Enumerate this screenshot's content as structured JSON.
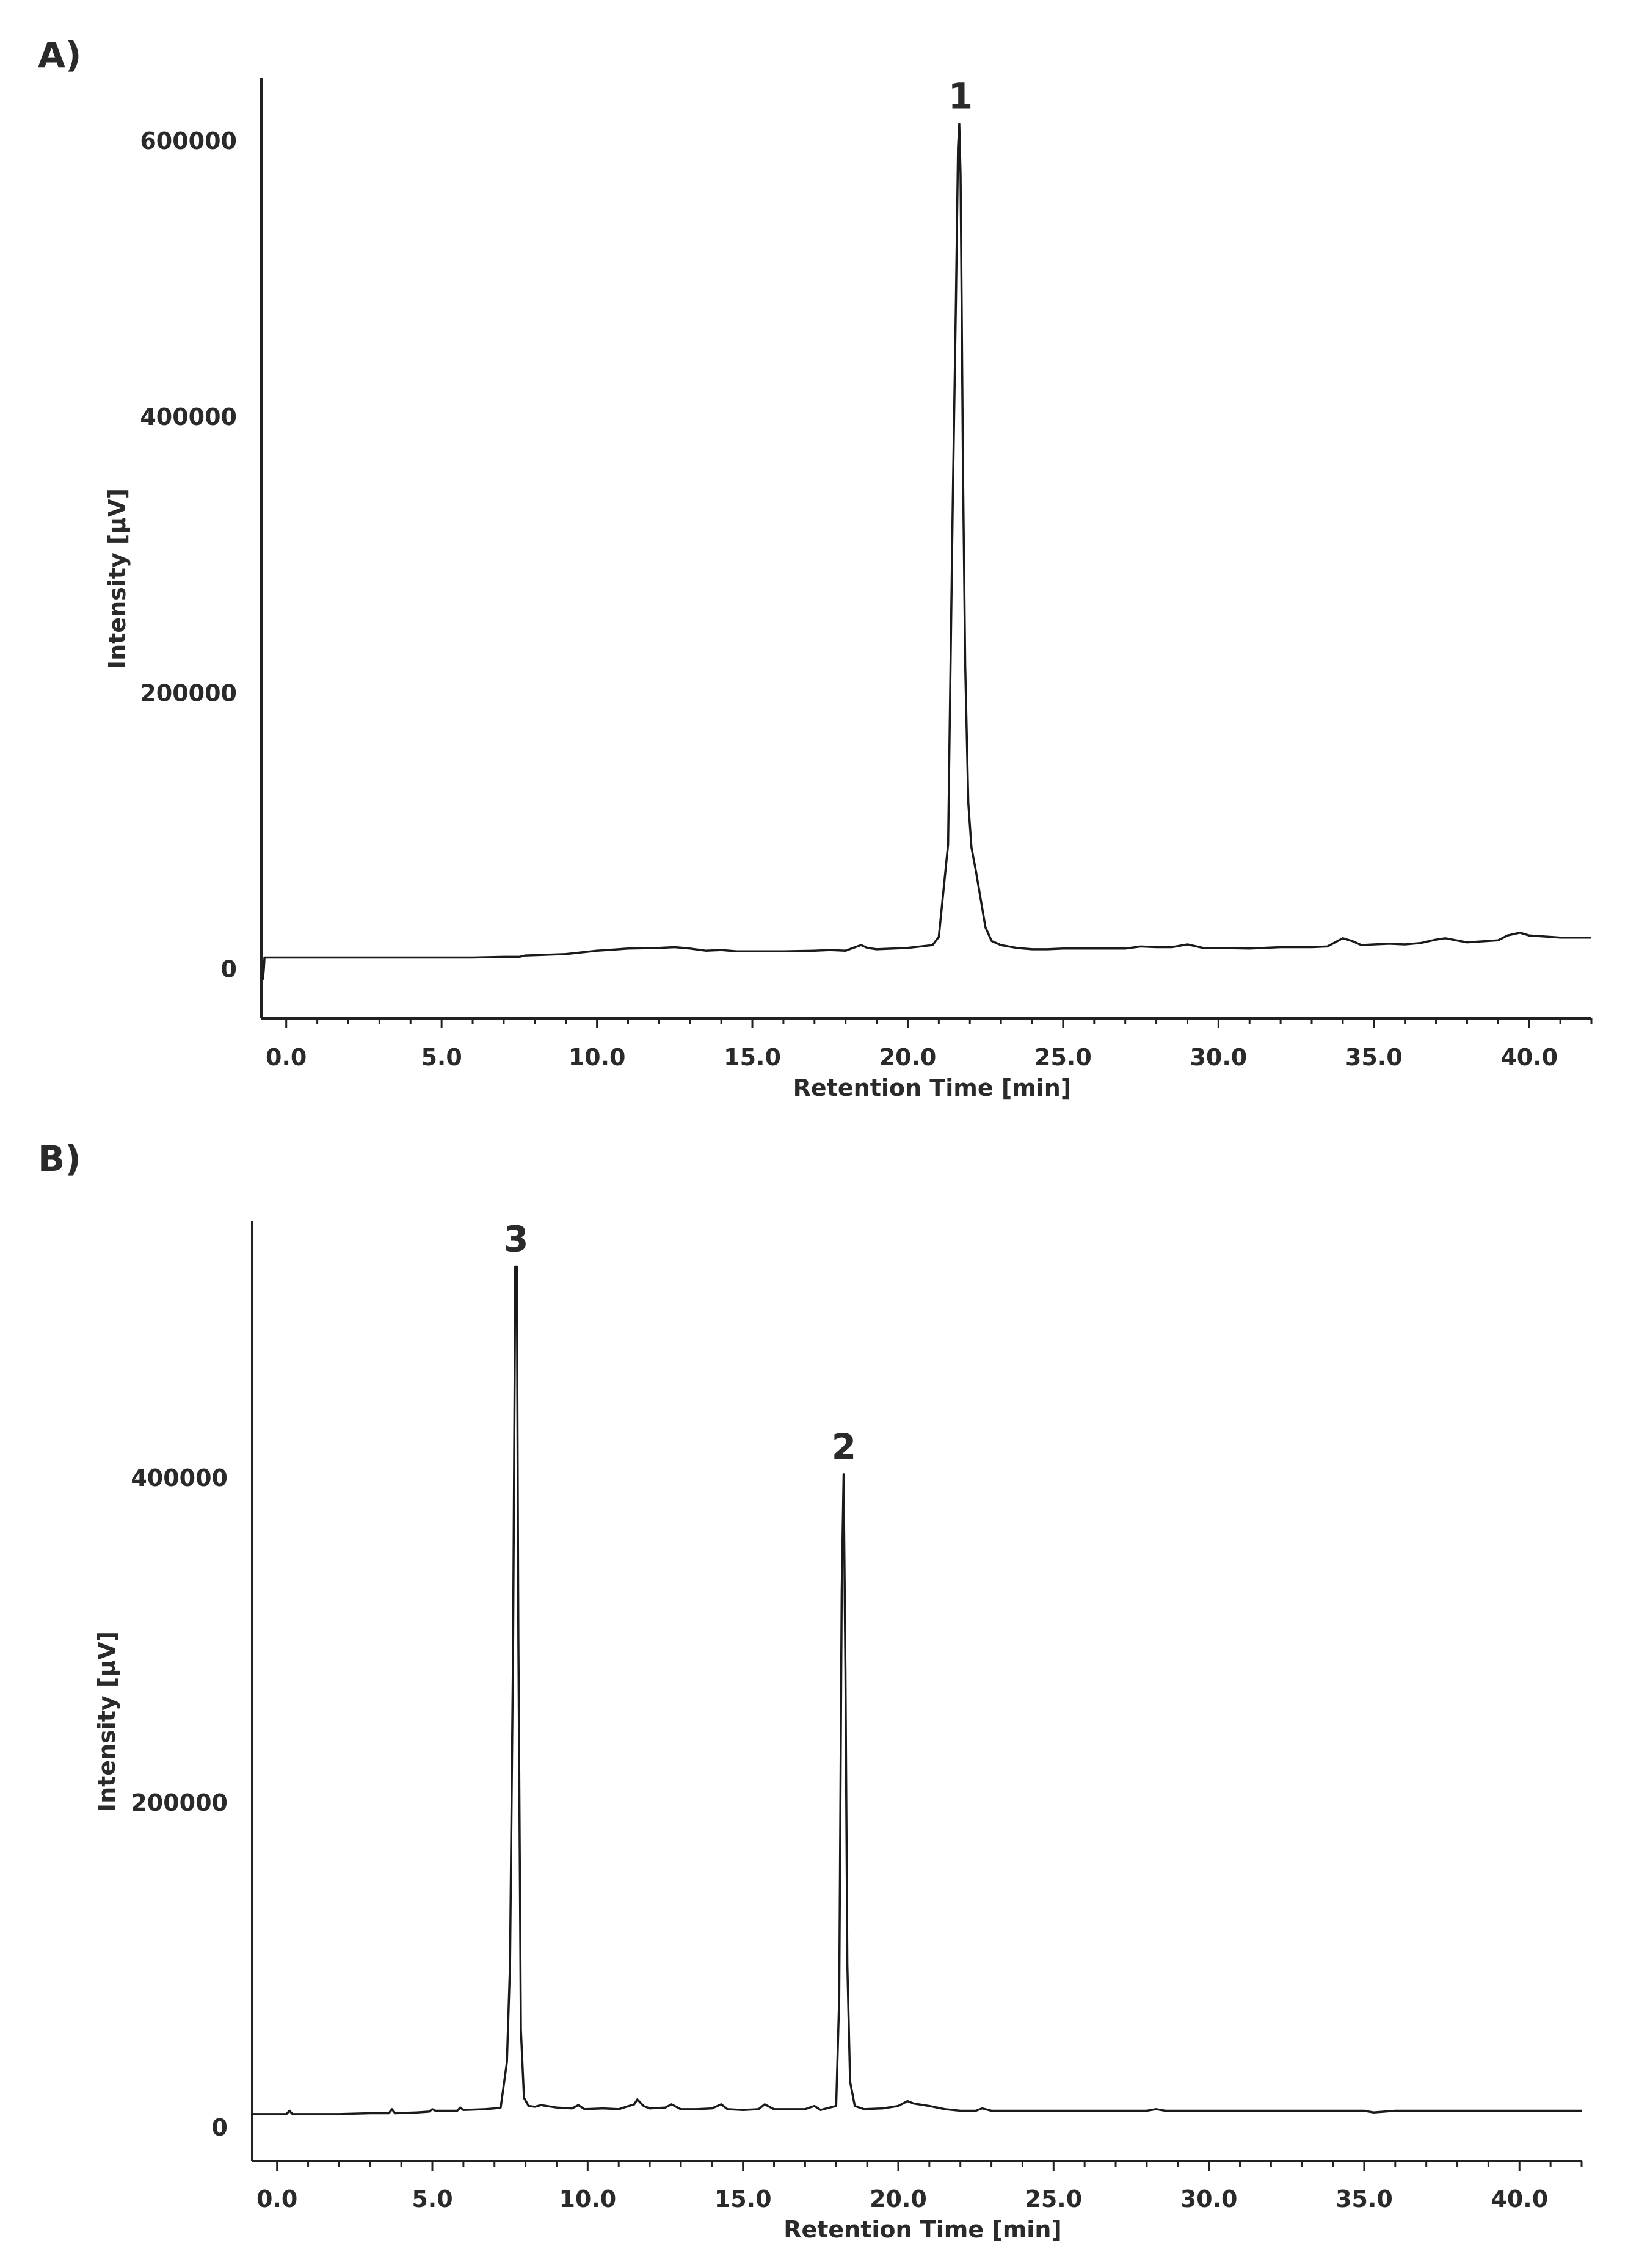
{
  "panels": [
    {
      "letter": "A)",
      "chart_data": {
        "type": "line",
        "title": "",
        "xlabel": "Retention Time [min]",
        "ylabel": "Intensity [µV]",
        "xlim": [
          -0.8,
          42.0
        ],
        "ylim": [
          -36000,
          645000
        ],
        "x_ticks": [
          "0.0",
          "5.0",
          "10.0",
          "15.0",
          "20.0",
          "25.0",
          "30.0",
          "35.0",
          "40.0"
        ],
        "y_ticks": [
          "0",
          "200000",
          "400000",
          "600000"
        ],
        "grid": false,
        "legend": "none",
        "peak_labels": [
          {
            "label": "1",
            "x": 21.7,
            "y": 612000
          }
        ],
        "series": [
          {
            "x": [
              -0.75,
              -0.72,
              -0.7,
              -0.65,
              0.0,
              2.0,
              4.0,
              6.0,
              7.0,
              7.5,
              7.7,
              9.0,
              10.0,
              11.0,
              12.0,
              12.5,
              13.0,
              13.5,
              14.0,
              14.5,
              15.0,
              16.0,
              17.0,
              17.5,
              18.0,
              18.5,
              18.7,
              19.0,
              20.0,
              20.8,
              21.0,
              21.3,
              21.45,
              21.55,
              21.62,
              21.66,
              21.7,
              21.74,
              21.78,
              21.85,
              21.95,
              22.05,
              22.2,
              22.35,
              22.5,
              22.7,
              23.0,
              23.5,
              24.0,
              24.5,
              25.0,
              26.0,
              27.0,
              27.5,
              28.0,
              28.5,
              29.0,
              29.5,
              30.0,
              31.0,
              32.0,
              33.0,
              33.5,
              34.0,
              34.3,
              34.6,
              35.0,
              35.5,
              36.0,
              36.5,
              37.0,
              37.3,
              38.0,
              39.0,
              39.3,
              39.7,
              40.0,
              41.0,
              42.0
            ],
            "y": [
              -8000,
              0,
              8000,
              8000,
              8000,
              8000,
              8000,
              8000,
              8500,
              8500,
              9500,
              10500,
              13000,
              14500,
              15000,
              15500,
              14500,
              13000,
              13500,
              12500,
              12500,
              12500,
              13000,
              13500,
              13000,
              17000,
              15000,
              14000,
              15000,
              17000,
              23000,
              90000,
              340000,
              480000,
              595000,
              612000,
              575000,
              470000,
              360000,
              220000,
              120000,
              88000,
              70000,
              50000,
              30000,
              20000,
              17000,
              15000,
              14000,
              14000,
              14500,
              14500,
              14500,
              16000,
              15500,
              15500,
              17500,
              15000,
              15000,
              14500,
              15500,
              15500,
              16000,
              22000,
              20000,
              17000,
              17500,
              18000,
              17500,
              18500,
              21000,
              22000,
              19000,
              20500,
              24000,
              26000,
              24000,
              22500,
              22500
            ]
          }
        ]
      }
    },
    {
      "letter": "B)",
      "chart_data": {
        "type": "line",
        "title": "",
        "xlabel": "Retention Time [min]",
        "ylabel": "Intensity [µV]",
        "xlim": [
          -0.8,
          42.0
        ],
        "ylim": [
          -21000,
          558000
        ],
        "x_ticks": [
          "0.0",
          "5.0",
          "10.0",
          "15.0",
          "20.0",
          "25.0",
          "30.0",
          "35.0",
          "40.0"
        ],
        "y_ticks": [
          "0",
          "200000",
          "400000"
        ],
        "grid": false,
        "legend": "none",
        "peak_labels": [
          {
            "label": "3",
            "x": 7.7,
            "y": 530000
          },
          {
            "label": "2",
            "x": 18.25,
            "y": 402000
          }
        ],
        "series": [
          {
            "x": [
              -0.8,
              0.0,
              0.3,
              0.4,
              0.5,
              1.0,
              2.0,
              3.0,
              3.6,
              3.7,
              3.8,
              4.5,
              4.9,
              5.0,
              5.1,
              5.8,
              5.9,
              6.0,
              6.7,
              7.0,
              7.2,
              7.4,
              7.5,
              7.6,
              7.67,
              7.72,
              7.77,
              7.85,
              7.95,
              8.1,
              8.3,
              8.5,
              9.0,
              9.5,
              9.7,
              9.9,
              10.5,
              11.0,
              11.5,
              11.6,
              11.8,
              12.0,
              12.5,
              12.7,
              13.0,
              13.5,
              14.0,
              14.3,
              14.5,
              15.0,
              15.5,
              15.7,
              16.0,
              17.0,
              17.3,
              17.5,
              18.0,
              18.1,
              18.18,
              18.24,
              18.3,
              18.36,
              18.45,
              18.6,
              18.9,
              19.5,
              20.0,
              20.3,
              20.5,
              21.0,
              21.5,
              22.0,
              22.5,
              22.7,
              23.0,
              25.0,
              27.0,
              28.0,
              28.3,
              28.6,
              30.0,
              32.0,
              35.0,
              35.3,
              36.0,
              38.0,
              40.0,
              42.0
            ],
            "y": [
              8000,
              8000,
              8000,
              10000,
              8000,
              8000,
              8000,
              8500,
              8500,
              11000,
              8500,
              9000,
              9500,
              11000,
              10000,
              10000,
              12000,
              10500,
              11000,
              11500,
              12000,
              40000,
              100000,
              300000,
              530000,
              530000,
              300000,
              60000,
              18000,
              13000,
              12500,
              13500,
              12000,
              11500,
              13500,
              11000,
              11500,
              11000,
              14000,
              17000,
              13000,
              11500,
              12000,
              14000,
              11000,
              11000,
              11500,
              14000,
              11000,
              10500,
              11000,
              14000,
              11000,
              11000,
              13000,
              10500,
              13000,
              80000,
              330000,
              402000,
              280000,
              100000,
              28000,
              13000,
              11000,
              11500,
              13000,
              16000,
              14500,
              13000,
              11000,
              10000,
              10000,
              11500,
              10000,
              10000,
              10000,
              10000,
              11000,
              10000,
              10000,
              10000,
              10000,
              9000,
              10000,
              10000,
              10000,
              10000
            ]
          }
        ]
      }
    }
  ]
}
